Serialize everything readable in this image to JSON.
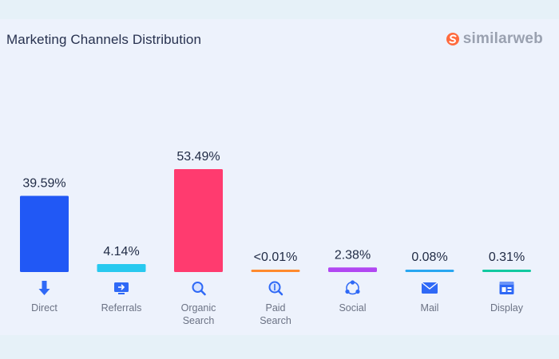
{
  "header": {
    "title": "Marketing Channels Distribution",
    "logo_text": "similarweb"
  },
  "chart_data": {
    "type": "bar",
    "title": "Marketing Channels Distribution",
    "categories": [
      "Direct",
      "Referrals",
      "Organic Search",
      "Paid Search",
      "Social",
      "Mail",
      "Display"
    ],
    "category_lines": [
      [
        "Direct"
      ],
      [
        "Referrals"
      ],
      [
        "Organic",
        "Search"
      ],
      [
        "Paid",
        "Search"
      ],
      [
        "Social"
      ],
      [
        "Mail"
      ],
      [
        "Display"
      ]
    ],
    "values": [
      39.59,
      4.14,
      53.49,
      0.01,
      2.38,
      0.08,
      0.31
    ],
    "value_labels": [
      "39.59%",
      "4.14%",
      "53.49%",
      "<0.01%",
      "2.38%",
      "0.08%",
      "0.31%"
    ],
    "colors": [
      "#2158f5",
      "#28c9ef",
      "#ff3b6f",
      "#ff8a2e",
      "#b147f2",
      "#27a6f1",
      "#11c9a0"
    ],
    "icons": [
      "arrow-down-icon",
      "referral-monitor-icon",
      "search-magnifier-icon",
      "paid-search-coin-icon",
      "social-network-icon",
      "mail-envelope-icon",
      "display-window-icon"
    ],
    "ylim": [
      0,
      53.49
    ],
    "grid": false,
    "legend": "none"
  }
}
